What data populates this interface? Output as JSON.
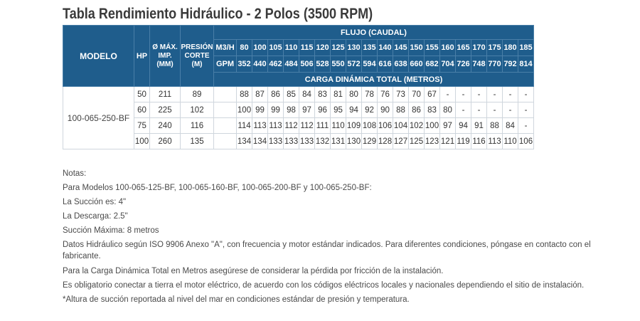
{
  "title": "Tabla Rendimiento Hidráulico - 2 Polos (3500 RPM)",
  "header": {
    "modelo": "MODELO",
    "hp": "HP",
    "diam_line1": "Ø MÁX.",
    "diam_line2": "IMP.",
    "diam_line3": "(MM)",
    "presion_line1": "PRESIÓN",
    "presion_line2": "CORTE",
    "presion_line3": "(M)",
    "flujo": "FLUJO (CAUDAL)",
    "m3h_label": "M3/H",
    "gpm_label": "GPM",
    "carga": "CARGA DINÁMICA TOTAL (METROS)"
  },
  "m3h": [
    "80",
    "100",
    "105",
    "110",
    "115",
    "120",
    "125",
    "130",
    "135",
    "140",
    "145",
    "150",
    "155",
    "160",
    "165",
    "170",
    "175",
    "180",
    "185"
  ],
  "gpm": [
    "352",
    "440",
    "462",
    "484",
    "506",
    "528",
    "550",
    "572",
    "594",
    "616",
    "638",
    "660",
    "682",
    "704",
    "726",
    "748",
    "770",
    "792",
    "814"
  ],
  "model": "100-065-250-BF",
  "rows": [
    {
      "hp": "50",
      "diam": "211",
      "presion": "89",
      "values": [
        "88",
        "87",
        "86",
        "85",
        "84",
        "83",
        "81",
        "80",
        "78",
        "76",
        "73",
        "70",
        "67",
        "-",
        "-",
        "-",
        "-",
        "-",
        "-"
      ]
    },
    {
      "hp": "60",
      "diam": "225",
      "presion": "102",
      "values": [
        "100",
        "99",
        "99",
        "98",
        "97",
        "96",
        "95",
        "94",
        "92",
        "90",
        "88",
        "86",
        "83",
        "80",
        "-",
        "-",
        "-",
        "-",
        "-"
      ]
    },
    {
      "hp": "75",
      "diam": "240",
      "presion": "116",
      "values": [
        "114",
        "113",
        "113",
        "112",
        "112",
        "111",
        "110",
        "109",
        "108",
        "106",
        "104",
        "102",
        "100",
        "97",
        "94",
        "91",
        "88",
        "84",
        "-"
      ]
    },
    {
      "hp": "100",
      "diam": "260",
      "presion": "135",
      "values": [
        "134",
        "134",
        "133",
        "133",
        "133",
        "132",
        "131",
        "130",
        "129",
        "128",
        "127",
        "125",
        "123",
        "121",
        "119",
        "116",
        "113",
        "110",
        "106"
      ]
    }
  ],
  "notes": {
    "n0": "Notas:",
    "n1": "Para Modelos 100-065-125-BF, 100-065-160-BF, 100-065-200-BF y 100-065-250-BF:",
    "n2": "La Succión es: 4\"",
    "n3": "La Descarga: 2.5\"",
    "n4": "Succión Máxima: 8 metros",
    "n5": "Datos Hidráulico según ISO 9906 Anexo \"A\", con frecuencia y motor estándar indicados. Para diferentes condiciones, póngase en contacto con el fabricante.",
    "n6": "Para la Carga Dinámica Total en Metros asegúrese de considerar la pérdida por fricción de la instalación.",
    "n7": "Es obligatorio conectar a tierra el motor eléctrico, de acuerdo con los códigos eléctricos locales y nacionales dependiendo el sitio de instalación.",
    "n8": "*Altura de succión reportada al nivel del mar en condiciones estándar de presión y temperatura."
  },
  "colors": {
    "header_bg": "#1f5d8c",
    "header_text": "#ffffff",
    "grid": "#cfd6dd"
  }
}
